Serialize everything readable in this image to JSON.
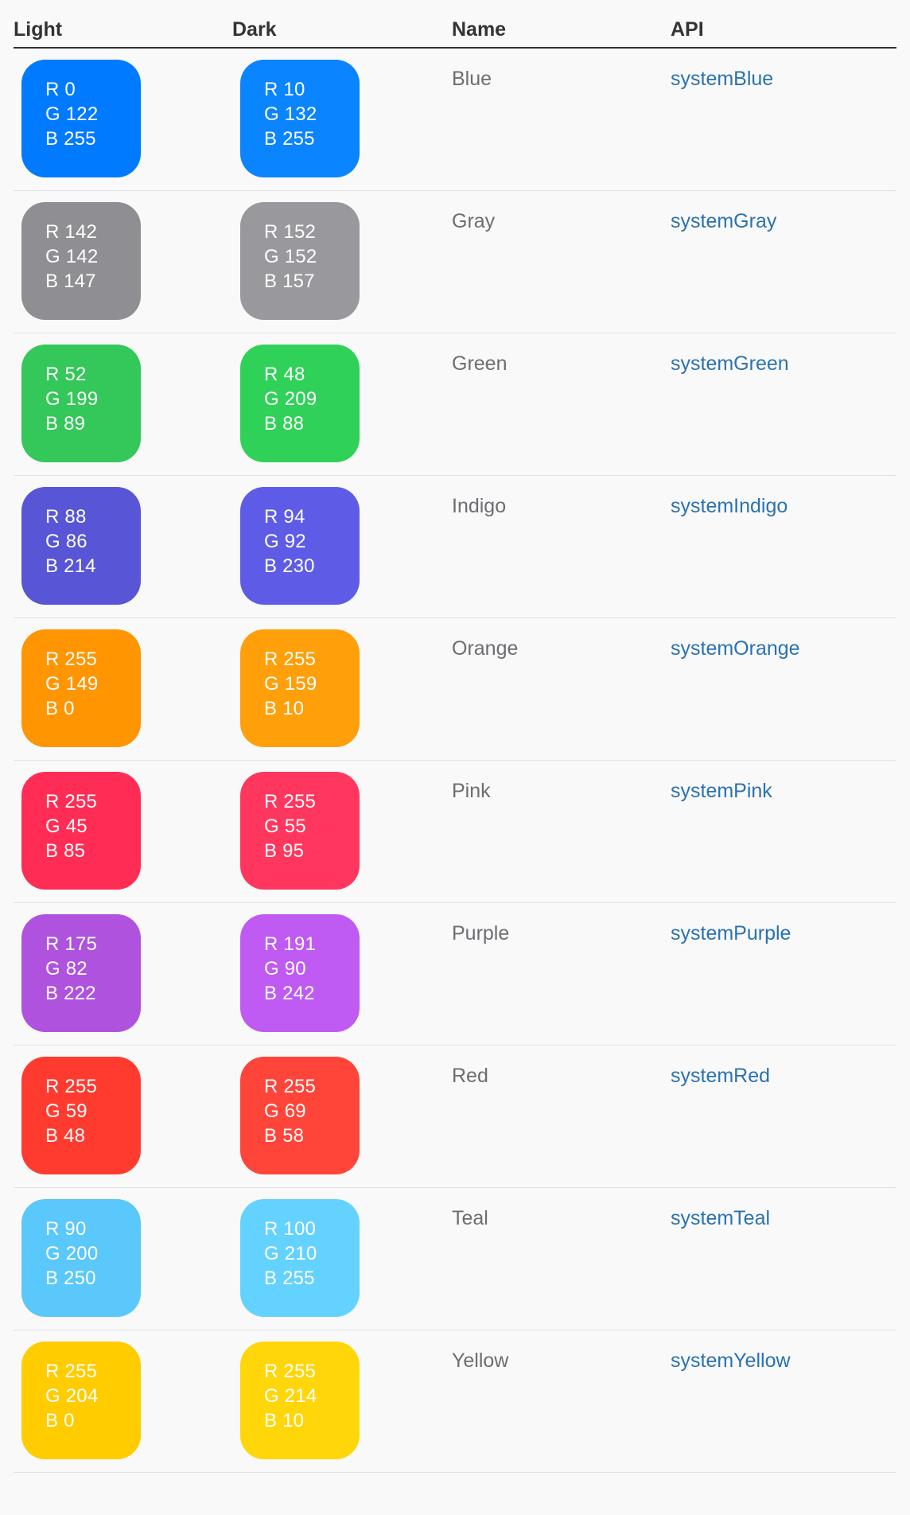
{
  "page": {
    "background": "#f9f9f9",
    "link_color": "#2a72b0",
    "name_color": "#6d6d72",
    "header_rule_color": "#333333",
    "separator_color": "#e2e2e4"
  },
  "table": {
    "headers": [
      "Light",
      "Dark",
      "Name",
      "API"
    ],
    "rows": [
      {
        "name": "Blue",
        "api": "systemBlue",
        "light": {
          "css": "rgb(0,122,255)",
          "lines": [
            "R 0",
            "G 122",
            "B 255"
          ]
        },
        "dark": {
          "css": "rgb(10,132,255)",
          "lines": [
            "R 10",
            "G 132",
            "B 255"
          ]
        }
      },
      {
        "name": "Gray",
        "api": "systemGray",
        "light": {
          "css": "rgb(142,142,147)",
          "lines": [
            "R 142",
            "G 142",
            "B 147"
          ]
        },
        "dark": {
          "css": "rgb(152,152,157)",
          "lines": [
            "R 152",
            "G 152",
            "B 157"
          ]
        }
      },
      {
        "name": "Green",
        "api": "systemGreen",
        "light": {
          "css": "rgb(52,199,89)",
          "lines": [
            "R 52",
            "G 199",
            "B 89"
          ]
        },
        "dark": {
          "css": "rgb(48,209,88)",
          "lines": [
            "R 48",
            "G 209",
            "B 88"
          ]
        }
      },
      {
        "name": "Indigo",
        "api": "systemIndigo",
        "light": {
          "css": "rgb(88,86,214)",
          "lines": [
            "R 88",
            "G 86",
            "B 214"
          ]
        },
        "dark": {
          "css": "rgb(94,92,230)",
          "lines": [
            "R 94",
            "G 92",
            "B 230"
          ]
        }
      },
      {
        "name": "Orange",
        "api": "systemOrange",
        "light": {
          "css": "rgb(255,149,0)",
          "lines": [
            "R 255",
            "G 149",
            "B 0"
          ]
        },
        "dark": {
          "css": "rgb(255,159,10)",
          "lines": [
            "R 255",
            "G 159",
            "B 10"
          ]
        }
      },
      {
        "name": "Pink",
        "api": "systemPink",
        "light": {
          "css": "rgb(255,45,85)",
          "lines": [
            "R 255",
            "G 45",
            "B 85"
          ]
        },
        "dark": {
          "css": "rgb(255,55,95)",
          "lines": [
            "R 255",
            "G 55",
            "B 95"
          ]
        }
      },
      {
        "name": "Purple",
        "api": "systemPurple",
        "light": {
          "css": "rgb(175,82,222)",
          "lines": [
            "R 175",
            "G 82",
            "B 222"
          ]
        },
        "dark": {
          "css": "rgb(191,90,242)",
          "lines": [
            "R 191",
            "G 90",
            "B 242"
          ]
        }
      },
      {
        "name": "Red",
        "api": "systemRed",
        "light": {
          "css": "rgb(255,59,48)",
          "lines": [
            "R 255",
            "G 59",
            "B 48"
          ]
        },
        "dark": {
          "css": "rgb(255,69,58)",
          "lines": [
            "R 255",
            "G 69",
            "B 58"
          ]
        }
      },
      {
        "name": "Teal",
        "api": "systemTeal",
        "light": {
          "css": "rgb(90,200,250)",
          "lines": [
            "R 90",
            "G 200",
            "B 250"
          ]
        },
        "dark": {
          "css": "rgb(100,210,255)",
          "lines": [
            "R 100",
            "G 210",
            "B 255"
          ]
        }
      },
      {
        "name": "Yellow",
        "api": "systemYellow",
        "light": {
          "css": "rgb(255,204,0)",
          "lines": [
            "R 255",
            "G 204",
            "B 0"
          ]
        },
        "dark": {
          "css": "rgb(255,214,10)",
          "lines": [
            "R 255",
            "G 214",
            "B 10"
          ]
        }
      }
    ]
  }
}
